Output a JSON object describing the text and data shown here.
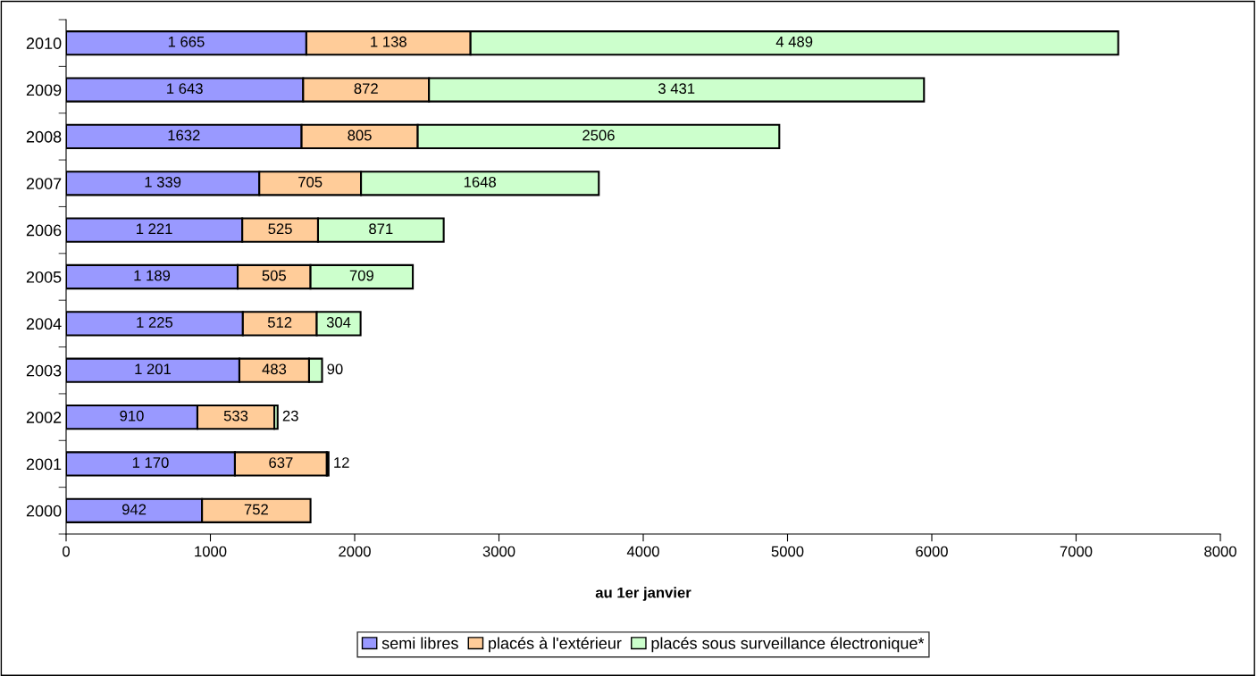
{
  "chart_data": {
    "type": "bar",
    "orientation": "horizontal",
    "stacked": true,
    "xlabel": "au 1er janvier",
    "categories": [
      "2010",
      "2009",
      "2008",
      "2007",
      "2006",
      "2005",
      "2004",
      "2003",
      "2002",
      "2001",
      "2000"
    ],
    "series": [
      {
        "name": "semi libres",
        "color": "#9999ff",
        "values": [
          1665,
          1643,
          1632,
          1339,
          1221,
          1189,
          1225,
          1201,
          910,
          1170,
          942
        ],
        "value_labels": [
          "1 665",
          "1 643",
          "1632",
          "1 339",
          "1 221",
          "1 189",
          "1 225",
          "1 201",
          "910",
          "1 170",
          "942"
        ]
      },
      {
        "name": "placés à l'extérieur",
        "color": "#ffcc99",
        "values": [
          1138,
          872,
          805,
          705,
          525,
          505,
          512,
          483,
          533,
          637,
          752
        ],
        "value_labels": [
          "1 138",
          "872",
          "805",
          "705",
          "525",
          "505",
          "512",
          "483",
          "533",
          "637",
          "752"
        ]
      },
      {
        "name": "placés sous surveillance électronique*",
        "color": "#ccffcc",
        "values": [
          4489,
          3431,
          2506,
          1648,
          871,
          709,
          304,
          90,
          23,
          12,
          null
        ],
        "value_labels": [
          "4 489",
          "3 431",
          "2506",
          "1648",
          "871",
          "709",
          "304",
          "90",
          "23",
          "12",
          null
        ]
      }
    ],
    "xlim": [
      0,
      8000
    ],
    "xticks": [
      0,
      1000,
      2000,
      3000,
      4000,
      5000,
      6000,
      7000,
      8000
    ],
    "grid": false,
    "legend": "bottom"
  }
}
